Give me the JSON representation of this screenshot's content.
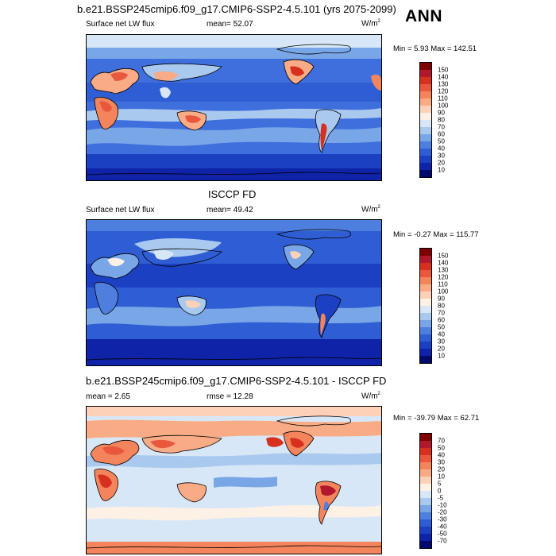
{
  "header": {
    "title": "b.e21.BSSP245cmip6.f09_g17.CMIP6-SSP2-4.5.101 (yrs 2075-2099)",
    "season": "ANN"
  },
  "panels": [
    {
      "title": "",
      "variable": "Surface net LW flux",
      "stat_label": "mean=  52.07",
      "units": "W/m",
      "units_sup": "2",
      "minmax": "Min =  5.93 Max = 142.51",
      "colorbar_labels": [
        "150",
        "140",
        "130",
        "120",
        "110",
        "100",
        "90",
        "80",
        "70",
        "60",
        "50",
        "40",
        "30",
        "20",
        "10"
      ],
      "colorbar_colors": [
        "#7f0000",
        "#b2182b",
        "#d6301e",
        "#e9573d",
        "#f4845c",
        "#f9ab85",
        "#fdd1b8",
        "#fdf0e4",
        "#d8e7f7",
        "#a9c9ef",
        "#78a6e6",
        "#4f7fde",
        "#2f5ed4",
        "#1b40c2",
        "#0e23a8",
        "#020a6e"
      ]
    },
    {
      "title": "ISCCP FD",
      "variable": "Surface net LW flux",
      "stat_label": "mean=  49.42",
      "units": "W/m",
      "units_sup": "2",
      "minmax": "Min = -0.27 Max = 115.77",
      "colorbar_labels": [
        "150",
        "140",
        "130",
        "120",
        "110",
        "100",
        "90",
        "80",
        "70",
        "60",
        "50",
        "40",
        "30",
        "20",
        "10"
      ],
      "colorbar_colors": [
        "#7f0000",
        "#b2182b",
        "#d6301e",
        "#e9573d",
        "#f4845c",
        "#f9ab85",
        "#fdd1b8",
        "#fdf0e4",
        "#d8e7f7",
        "#a9c9ef",
        "#78a6e6",
        "#4f7fde",
        "#2f5ed4",
        "#1b40c2",
        "#0e23a8",
        "#020a6e"
      ]
    },
    {
      "title": "b.e21.BSSP245cmip6.f09_g17.CMIP6-SSP2-4.5.101 - ISCCP FD",
      "variable": "mean =   2.65",
      "stat_label": "rmse =  12.28",
      "units": "W/m",
      "units_sup": "2",
      "minmax": "Min = -39.79 Max = 62.71",
      "colorbar_labels": [
        "70",
        "50",
        "40",
        "30",
        "20",
        "10",
        "5",
        "0",
        "-5",
        "-10",
        "-20",
        "-30",
        "-40",
        "-50",
        "-70"
      ],
      "colorbar_colors": [
        "#7f0000",
        "#b2182b",
        "#d6301e",
        "#e9573d",
        "#f4845c",
        "#f9ab85",
        "#fdd1b8",
        "#fdf0e4",
        "#d8e7f7",
        "#a9c9ef",
        "#78a6e6",
        "#4f7fde",
        "#2f5ed4",
        "#1b40c2",
        "#0e23a8",
        "#020a6e"
      ]
    }
  ]
}
